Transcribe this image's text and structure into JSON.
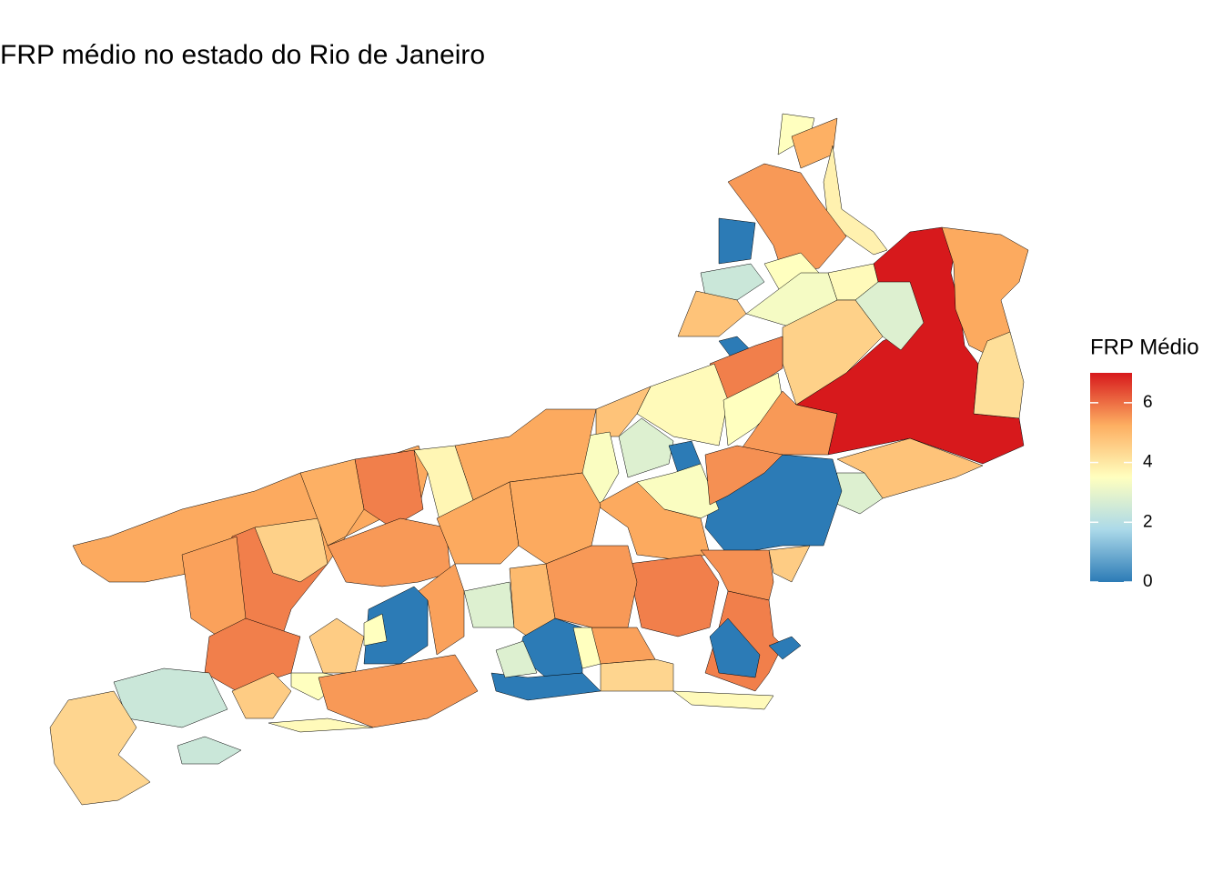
{
  "chart_data": {
    "type": "choropleth",
    "title": "FRP médio no estado do Rio de Janeiro",
    "legend_title": "FRP Médio",
    "colorscale": [
      {
        "value": 0,
        "color": "#2c7bb6"
      },
      {
        "value": 1.75,
        "color": "#abd9e9"
      },
      {
        "value": 3.5,
        "color": "#ffffbf"
      },
      {
        "value": 5.25,
        "color": "#fdae61"
      },
      {
        "value": 7,
        "color": "#d7191c"
      }
    ],
    "clim": [
      0,
      7
    ],
    "cticks": [
      0,
      2,
      4,
      6
    ],
    "values": [
      7.0,
      5.3,
      4.2,
      4.8,
      2.8,
      0,
      3.5,
      5.2,
      3.8,
      5.5,
      0,
      2.4,
      3.5,
      3.3,
      3.6,
      2.8,
      4.5,
      4.8,
      0,
      5.8,
      3.6,
      3.5,
      5.5,
      4.8,
      2.8,
      0,
      3.4,
      3.4,
      5.6,
      5.3,
      4.6,
      5.8,
      5.6,
      5.8,
      0,
      0,
      4.4,
      3.6,
      5.4,
      5.3,
      3.7,
      5.3,
      5.8,
      5.8,
      4.5,
      5.4,
      5.8,
      5.5,
      5.3,
      5.3,
      5.5,
      2.8,
      5.0,
      0,
      0,
      2.8,
      3.5,
      0,
      3.5,
      5.4,
      4.6,
      3.5,
      5.5,
      4.6,
      2.4,
      4.4,
      2.4,
      3.6,
      5.2
    ]
  }
}
